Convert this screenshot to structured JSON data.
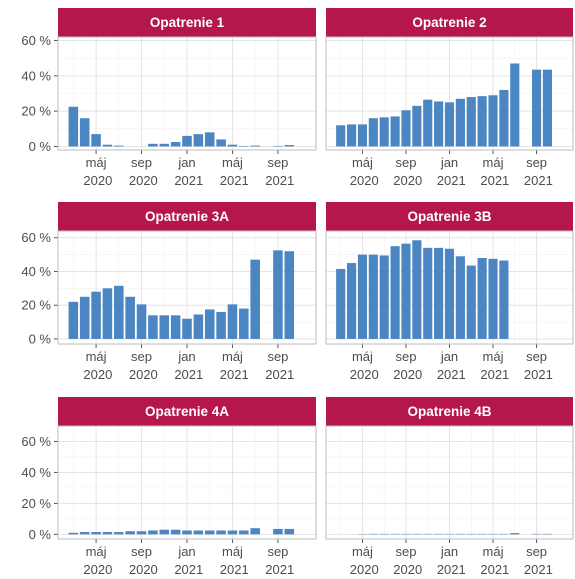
{
  "chart_data": [
    {
      "type": "bar",
      "title": "Opatrenie 1",
      "categories": [
        null,
        null,
        "máj 2020",
        null,
        null,
        null,
        "sep 2020",
        null,
        null,
        null,
        "jan 2021",
        null,
        null,
        null,
        "máj 2021",
        null,
        null,
        null,
        "sep 2021",
        null
      ],
      "values": [
        22.5,
        16,
        7,
        1,
        0.5,
        0,
        0,
        1.5,
        1.5,
        2.5,
        6,
        7,
        8,
        4,
        1,
        0.3,
        0.5,
        null,
        0.3,
        0.8
      ],
      "color": "#4b86c2",
      "ylim": [
        -2,
        62
      ],
      "yticks": [
        {
          "value": 0,
          "label": "0 %"
        },
        {
          "value": 20,
          "label": "20 %"
        },
        {
          "value": 40,
          "label": "40 %"
        },
        {
          "value": 60,
          "label": "60 %"
        }
      ],
      "grid": true
    },
    {
      "type": "bar",
      "title": "Opatrenie 2",
      "categories": [
        null,
        null,
        "máj 2020",
        null,
        null,
        null,
        "sep 2020",
        null,
        null,
        null,
        "jan 2021",
        null,
        null,
        null,
        "máj 2021",
        null,
        null,
        null,
        "sep 2021",
        null
      ],
      "values": [
        12,
        12.5,
        12.5,
        16,
        16.5,
        17,
        20.5,
        23,
        26.5,
        25.5,
        25,
        27,
        28,
        28.5,
        29,
        32,
        47,
        null,
        43.5,
        43.5
      ],
      "color": "#4b86c2",
      "ylim": [
        -2,
        62
      ],
      "yticks": [
        0,
        20,
        40,
        60
      ],
      "grid": true
    },
    {
      "type": "bar",
      "title": "Opatrenie 3A",
      "categories": [
        null,
        null,
        "máj 2020",
        null,
        null,
        null,
        "sep 2020",
        null,
        null,
        null,
        "jan 2021",
        null,
        null,
        null,
        "máj 2021",
        null,
        null,
        null,
        "sep 2021",
        null
      ],
      "values": [
        22,
        25,
        28,
        30,
        31.5,
        25,
        20.5,
        14,
        14,
        14,
        12,
        14.5,
        17.5,
        16,
        20.5,
        18,
        47,
        null,
        52.5,
        52
      ],
      "color": "#4b86c2",
      "ylim": [
        -3,
        64
      ],
      "yticks": [
        {
          "value": 0,
          "label": "0 %"
        },
        {
          "value": 20,
          "label": "20 %"
        },
        {
          "value": 40,
          "label": "40 %"
        },
        {
          "value": 60,
          "label": "60 %"
        }
      ],
      "grid": true
    },
    {
      "type": "bar",
      "title": "Opatrenie 3B",
      "categories": [
        null,
        null,
        "máj 2020",
        null,
        null,
        null,
        "sep 2020",
        null,
        null,
        null,
        "jan 2021",
        null,
        null,
        null,
        "máj 2021",
        null,
        null,
        null,
        "sep 2021",
        null
      ],
      "values": [
        41.5,
        45,
        50,
        50,
        49.5,
        55,
        56.5,
        58.5,
        54,
        54,
        53.5,
        49,
        43.5,
        48,
        47.5,
        46.5,
        null,
        null,
        null,
        null
      ],
      "color": "#4b86c2",
      "ylim": [
        -3,
        64
      ],
      "yticks": [
        0,
        20,
        40,
        60
      ],
      "grid": true
    },
    {
      "type": "bar",
      "title": "Opatrenie 4A",
      "categories": [
        null,
        null,
        "máj 2020",
        null,
        null,
        null,
        "sep 2020",
        null,
        null,
        null,
        "jan 2021",
        null,
        null,
        null,
        "máj 2021",
        null,
        null,
        null,
        "sep 2021",
        null
      ],
      "values": [
        1,
        1.5,
        1.5,
        1.5,
        1.5,
        2,
        2,
        2.5,
        3,
        3,
        2.5,
        2.5,
        2.5,
        2.5,
        2.5,
        2.5,
        4,
        null,
        3.5,
        3.5
      ],
      "color": "#4b86c2",
      "ylim": [
        -3,
        70
      ],
      "yticks": [
        {
          "value": 0,
          "label": "0 %"
        },
        {
          "value": 20,
          "label": "20 %"
        },
        {
          "value": 40,
          "label": "40 %"
        },
        {
          "value": 60,
          "label": "60 %"
        }
      ],
      "grid": true
    },
    {
      "type": "bar",
      "title": "Opatrenie 4B",
      "categories": [
        null,
        null,
        "máj 2020",
        null,
        null,
        null,
        "sep 2020",
        null,
        null,
        null,
        "jan 2021",
        null,
        null,
        null,
        "máj 2021",
        null,
        null,
        null,
        "sep 2021",
        null
      ],
      "values": [
        0,
        0,
        0.2,
        0.3,
        0.3,
        0.3,
        0.3,
        0.3,
        0.3,
        0.3,
        0.3,
        0.3,
        0.3,
        0.3,
        0.3,
        0.3,
        0.8,
        null,
        0.3,
        0.3
      ],
      "color": "#4b86c2",
      "ylim": [
        -3,
        70
      ],
      "yticks": [
        0,
        20,
        40,
        60
      ],
      "grid": true
    }
  ]
}
